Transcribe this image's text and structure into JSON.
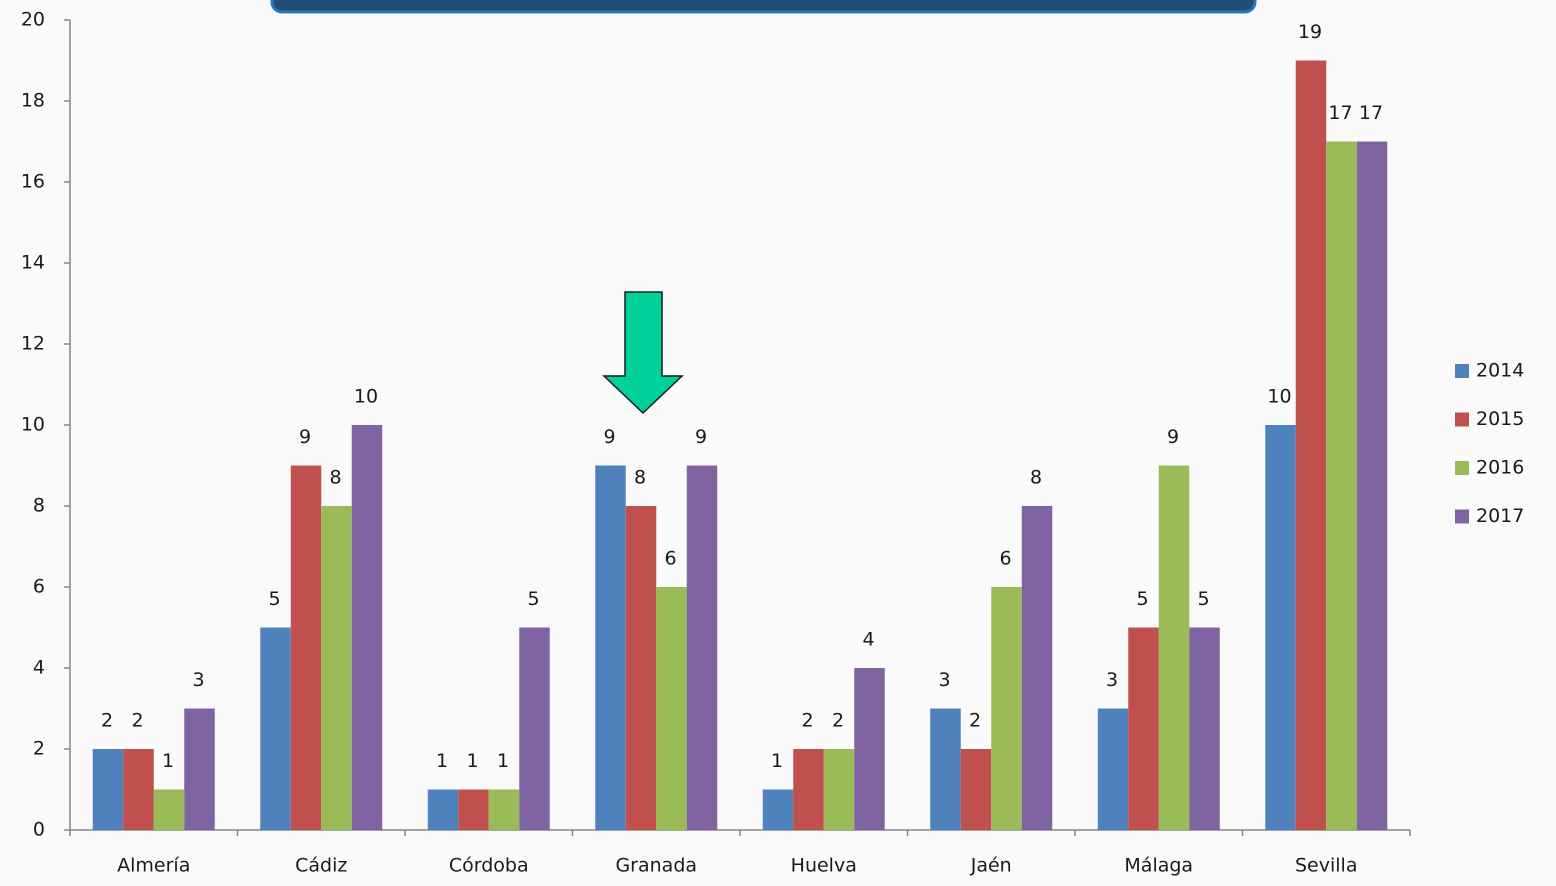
{
  "chart_data": {
    "type": "bar",
    "categories": [
      "Almería",
      "Cádiz",
      "Córdoba",
      "Granada",
      "Huelva",
      "Jaén",
      "Málaga",
      "Sevilla"
    ],
    "series": [
      {
        "name": "2014",
        "color": "#4f81bd",
        "values": [
          2,
          5,
          1,
          9,
          1,
          3,
          3,
          10
        ]
      },
      {
        "name": "2015",
        "color": "#c0504d",
        "values": [
          2,
          9,
          1,
          8,
          2,
          2,
          5,
          19
        ]
      },
      {
        "name": "2016",
        "color": "#9bbb59",
        "values": [
          1,
          8,
          1,
          6,
          2,
          6,
          9,
          17
        ]
      },
      {
        "name": "2017",
        "color": "#8064a2",
        "values": [
          3,
          10,
          5,
          9,
          4,
          8,
          5,
          17
        ]
      }
    ],
    "ylim": [
      0,
      20
    ],
    "yticks": [
      0,
      2,
      4,
      6,
      8,
      10,
      12,
      14,
      16,
      18,
      20
    ],
    "legend": "right"
  }
}
